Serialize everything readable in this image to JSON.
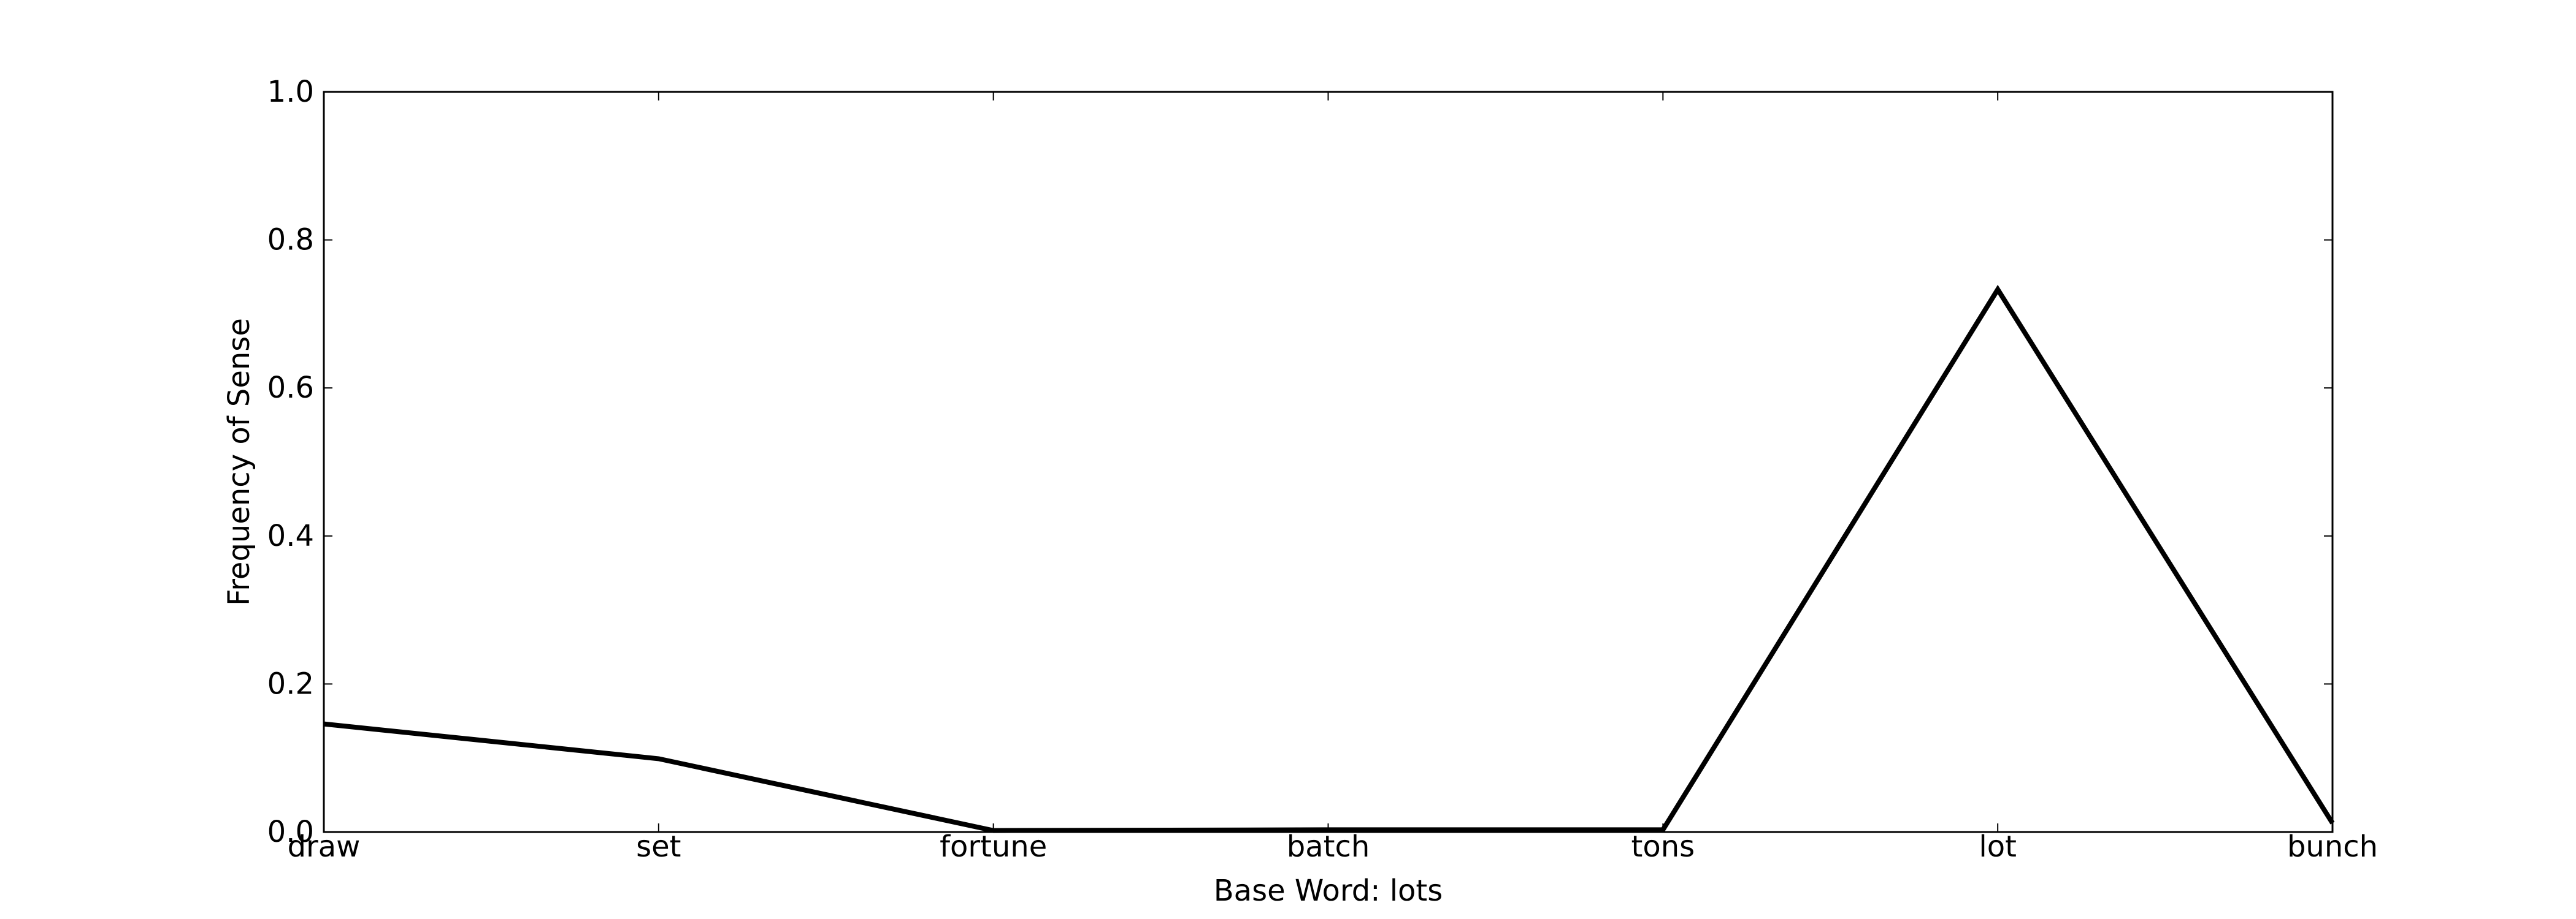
{
  "chart_data": {
    "type": "line",
    "title": "",
    "xlabel": "Base Word: lots",
    "ylabel": "Frequency of Sense",
    "categories": [
      "draw",
      "set",
      "fortune",
      "batch",
      "tons",
      "lot",
      "bunch"
    ],
    "series": [
      {
        "values": [
          0.146,
          0.099,
          0.002,
          0.003,
          0.003,
          0.733,
          0.012
        ],
        "color": "#000000"
      }
    ],
    "ylim": [
      0.0,
      1.0
    ],
    "yticks": [
      0.0,
      0.2,
      0.4,
      0.6,
      0.8,
      1.0
    ],
    "ytick_labels": [
      "0.0",
      "0.2",
      "0.4",
      "0.6",
      "0.8",
      "1.0"
    ],
    "grid": false,
    "legend": "none"
  }
}
